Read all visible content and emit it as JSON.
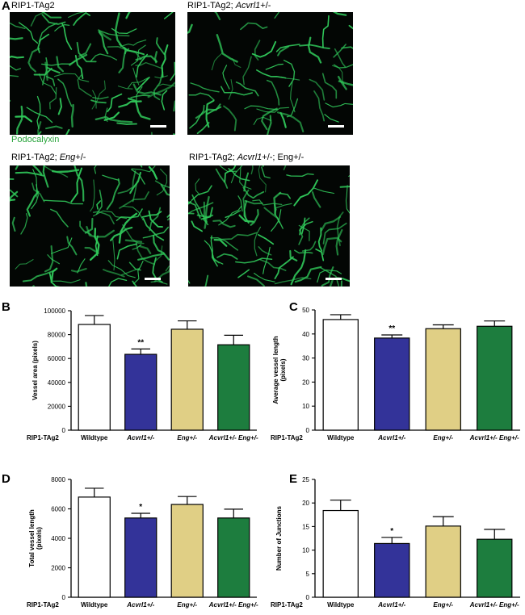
{
  "panels": {
    "A": {
      "letter": "A",
      "stain_label": "Podocalyxin",
      "images": [
        {
          "title_plain": "RIP1-TAg2",
          "title_italic": "",
          "title_suffix": ""
        },
        {
          "title_plain": "RIP1-TAg2; ",
          "title_italic": "Acvrl1",
          "title_suffix": "+/-"
        },
        {
          "title_plain": "RIP1-TAg2; ",
          "title_italic": "Eng",
          "title_suffix": "+/-"
        },
        {
          "title_plain": "RIP1-TAg2; ",
          "title_italic": "Acvrl1",
          "title_suffix": "+/-; Eng+/-"
        }
      ]
    }
  },
  "colors": {
    "wildtype": "#ffffff",
    "acvrl1": "#333399",
    "eng": "#e0cf85",
    "double": "#1d7d3e",
    "vessel": "#30c85a"
  },
  "genotype_row_label": "RIP1-TAg2",
  "chart_data": [
    {
      "panel": "B",
      "type": "bar",
      "ylabel": "Vessel area (pixels)",
      "ylim": [
        0,
        100000
      ],
      "yticks": [
        0,
        20000,
        40000,
        60000,
        80000,
        100000
      ],
      "categories": [
        "Wildtype",
        "Acvrl1+/-",
        "Eng+/-",
        "Acvrl1+/- Eng+/-"
      ],
      "values": [
        88500,
        63500,
        84500,
        71500
      ],
      "errors": [
        7500,
        4500,
        7000,
        8000
      ],
      "significance": [
        "",
        "**",
        "",
        ""
      ]
    },
    {
      "panel": "C",
      "type": "bar",
      "ylabel": "Average  vessel  length (pixels)",
      "ylim": [
        0,
        50
      ],
      "yticks": [
        0,
        10,
        20,
        30,
        40,
        50
      ],
      "categories": [
        "Wildtype",
        "Acvrl1+/-",
        "Eng+/-",
        "Acvrl1+/- Eng+/-"
      ],
      "values": [
        46,
        38.3,
        42.2,
        43.2
      ],
      "errors": [
        2,
        1.3,
        1.6,
        2.2
      ],
      "significance": [
        "",
        "**",
        "",
        ""
      ]
    },
    {
      "panel": "D",
      "type": "bar",
      "ylabel": "Total vessel  length (pixels)",
      "ylim": [
        0,
        8000
      ],
      "yticks": [
        0,
        2000,
        4000,
        6000,
        8000
      ],
      "categories": [
        "Wildtype",
        "Acvrl1+/-",
        "Eng+/-",
        "Acvrl1+/- Eng+/-"
      ],
      "values": [
        6800,
        5380,
        6300,
        5380
      ],
      "errors": [
        600,
        320,
        540,
        600
      ],
      "significance": [
        "",
        "*",
        "",
        ""
      ]
    },
    {
      "panel": "E",
      "type": "bar",
      "ylabel": "Number of Junctions",
      "ylim": [
        0,
        25
      ],
      "yticks": [
        0,
        5,
        10,
        15,
        20,
        25
      ],
      "categories": [
        "Wildtype",
        "Acvrl1+/-",
        "Eng+/-",
        "Acvrl1+/- Eng+/-"
      ],
      "values": [
        18.4,
        11.4,
        15.1,
        12.3
      ],
      "errors": [
        2.2,
        1.3,
        2.0,
        2.1
      ],
      "significance": [
        "",
        "*",
        "",
        ""
      ]
    }
  ]
}
